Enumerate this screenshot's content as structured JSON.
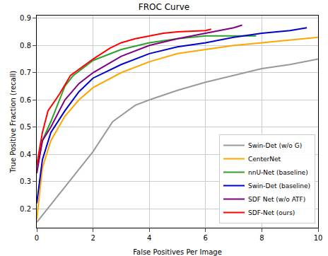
{
  "chart_data": {
    "type": "line",
    "title": "FROC Curve",
    "x_label": "False Positives Per Image",
    "y_label": "True Positive Fraction (recall)",
    "xlim": [
      0,
      10
    ],
    "xticks": [
      0,
      2,
      4,
      6,
      8,
      10
    ],
    "ylim": [
      0.13,
      0.91
    ],
    "yticks": [
      0.2,
      0.3,
      0.4,
      0.5,
      0.6,
      0.7,
      0.8,
      0.9
    ],
    "grid": true,
    "legend": "lower right",
    "series": [
      {
        "name": "Swin-Det (w/o G)",
        "color": "#999999",
        "x": [
          0,
          1,
          2,
          2.7,
          3.5,
          4,
          5,
          6,
          7,
          8,
          9,
          10
        ],
        "values": [
          0.15,
          0.28,
          0.41,
          0.52,
          0.58,
          0.6,
          0.635,
          0.665,
          0.69,
          0.715,
          0.73,
          0.75
        ]
      },
      {
        "name": "CenterNet",
        "color": "#ffa500",
        "x": [
          0,
          0.2,
          0.5,
          1,
          1.5,
          2,
          3,
          4,
          5,
          6,
          7,
          8,
          9,
          10
        ],
        "values": [
          0.16,
          0.35,
          0.45,
          0.54,
          0.6,
          0.645,
          0.7,
          0.74,
          0.77,
          0.785,
          0.8,
          0.81,
          0.82,
          0.83
        ]
      },
      {
        "name": "nnU-Net (baseline)",
        "color": "#2ca02c",
        "x": [
          0,
          0.2,
          0.5,
          0.8,
          1,
          1.3,
          2,
          3,
          4,
          5,
          6,
          7,
          7.8
        ],
        "values": [
          0.34,
          0.45,
          0.52,
          0.6,
          0.65,
          0.69,
          0.745,
          0.785,
          0.81,
          0.825,
          0.835,
          0.835,
          0.835
        ]
      },
      {
        "name": "Swin-Det (baseline)",
        "color": "#0000cc",
        "x": [
          0,
          0.2,
          0.5,
          1,
          1.5,
          2,
          3,
          4,
          5,
          6,
          7,
          8,
          9,
          9.6
        ],
        "values": [
          0.22,
          0.38,
          0.48,
          0.56,
          0.63,
          0.68,
          0.73,
          0.77,
          0.795,
          0.81,
          0.83,
          0.845,
          0.855,
          0.865
        ]
      },
      {
        "name": "SDF Net (w/o ATF)",
        "color": "#800080",
        "x": [
          0,
          0.2,
          0.5,
          1,
          1.5,
          2,
          3,
          4,
          5,
          6,
          7,
          7.3
        ],
        "values": [
          0.33,
          0.45,
          0.5,
          0.6,
          0.66,
          0.7,
          0.76,
          0.8,
          0.825,
          0.845,
          0.865,
          0.875
        ]
      },
      {
        "name": "SDF-Net (ours)",
        "color": "#ff0000",
        "x": [
          0,
          0.2,
          0.4,
          0.8,
          1.2,
          2,
          2.6,
          3,
          3.5,
          4,
          4.5,
          5,
          6,
          6.2
        ],
        "values": [
          0.36,
          0.48,
          0.56,
          0.62,
          0.69,
          0.75,
          0.79,
          0.81,
          0.825,
          0.835,
          0.845,
          0.85,
          0.855,
          0.86
        ]
      }
    ]
  }
}
